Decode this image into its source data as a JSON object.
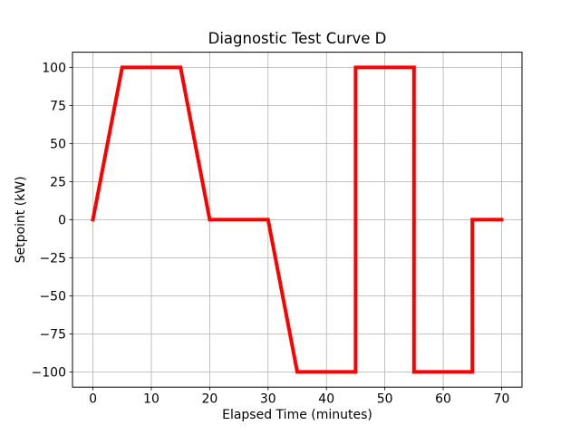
{
  "chart_data": {
    "type": "line",
    "title": "Diagnostic Test Curve D",
    "xlabel": "Elapsed Time (minutes)",
    "ylabel": "Setpoint (kW)",
    "grid": true,
    "legend": false,
    "line_color": "#ff0000",
    "line_width": 4,
    "xlim": [
      -3.5,
      73.5
    ],
    "ylim": [
      -110,
      110
    ],
    "xticks": [
      0,
      10,
      20,
      30,
      40,
      50,
      60,
      70
    ],
    "yticks": [
      -100,
      -75,
      -50,
      -25,
      0,
      25,
      50,
      75,
      100
    ],
    "series": [
      {
        "name": "setpoint",
        "points": [
          [
            0,
            0
          ],
          [
            5,
            100
          ],
          [
            15,
            100
          ],
          [
            20,
            0
          ],
          [
            30,
            0
          ],
          [
            35,
            -100
          ],
          [
            45,
            -100
          ],
          [
            45,
            100
          ],
          [
            55,
            100
          ],
          [
            55,
            -100
          ],
          [
            65,
            -100
          ],
          [
            65,
            0
          ],
          [
            70,
            0
          ]
        ]
      }
    ]
  }
}
